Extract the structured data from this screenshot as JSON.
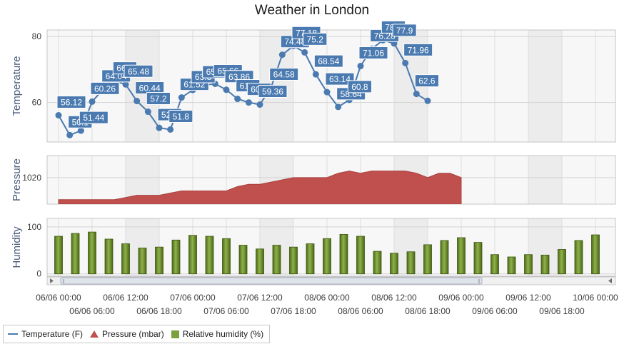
{
  "chart_data": {
    "title": "Weather in London",
    "x_labels": [
      "06/06 00:00",
      "06/06 06:00",
      "06/06 12:00",
      "06/06 18:00",
      "07/06 00:00",
      "07/06 06:00",
      "07/06 12:00",
      "07/06 18:00",
      "08/06 00:00",
      "08/06 06:00",
      "08/06 12:00",
      "08/06 18:00",
      "09/06 00:00",
      "09/06 06:00",
      "09/06 12:00",
      "09/06 18:00",
      "10/06 00:00"
    ],
    "x_step_hours": 2,
    "panes": [
      {
        "name": "temperature",
        "type": "line",
        "ylabel": "Temperature",
        "yticks": [
          60,
          80
        ],
        "ylim": [
          48,
          82
        ],
        "series": {
          "name": "Temperature (F)",
          "color": "#4a7ab0",
          "values": [
            56.12,
            50.1,
            51.44,
            60.26,
            64.04,
            66.5,
            65.48,
            60.44,
            57.2,
            52.3,
            51.8,
            61.52,
            63.8,
            65.3,
            65.66,
            63.86,
            61.1,
            60.0,
            59.36,
            64.58,
            74.48,
            77.18,
            75.2,
            68.54,
            63.14,
            58.64,
            60.8,
            71.06,
            76.28,
            78.9,
            77.9,
            71.96,
            62.6,
            60.5
          ],
          "point_labels": [
            "56.12",
            "50.1",
            "51.44",
            "60.26",
            "64.04",
            "66.5",
            "65.48",
            "60.44",
            "57.2",
            "52.3",
            "51.8",
            "61.52",
            "63.8",
            "65.3",
            "65.66",
            "63.86",
            "61.1",
            "60.0",
            "59.36",
            "64.58",
            "74.48",
            "77.18",
            "75.2",
            "68.54",
            "63.14",
            "58.64",
            "60.8",
            "71.06",
            "76.28",
            "78.9",
            "77.9",
            "71.96",
            "62.6",
            ""
          ]
        }
      },
      {
        "name": "pressure",
        "type": "area",
        "ylabel": "Pressure",
        "yticks": [
          1020
        ],
        "ylim": [
          1008,
          1030
        ],
        "series": {
          "name": "Pressure (mbar)",
          "color": "#c0504d",
          "values": [
            1010,
            1010,
            1010,
            1010,
            1010,
            1010,
            1011,
            1012,
            1012,
            1012,
            1013,
            1014,
            1014,
            1014,
            1014,
            1014,
            1016,
            1017,
            1017,
            1018,
            1019,
            1020,
            1020,
            1020,
            1020,
            1022,
            1023,
            1022,
            1023,
            1023,
            1023,
            1023,
            1022,
            1020,
            1022,
            1022,
            1020
          ]
        }
      },
      {
        "name": "humidity",
        "type": "bar",
        "ylabel": "Humidity",
        "yticks": [
          0,
          100
        ],
        "ylim": [
          -5,
          118
        ],
        "series": {
          "name": "Relative humidity (%)",
          "color": "#6a8a2a",
          "values": [
            80,
            86,
            89,
            74,
            64,
            55,
            57,
            72,
            82,
            80,
            75,
            61,
            53,
            61,
            57,
            64,
            75,
            84,
            80,
            48,
            44,
            47,
            62,
            71,
            77,
            67,
            41,
            36,
            41,
            40,
            52,
            71,
            83
          ]
        }
      }
    ],
    "legend": [
      "Temperature (F)",
      "Pressure (mbar)",
      "Relative humidity (%)"
    ]
  }
}
